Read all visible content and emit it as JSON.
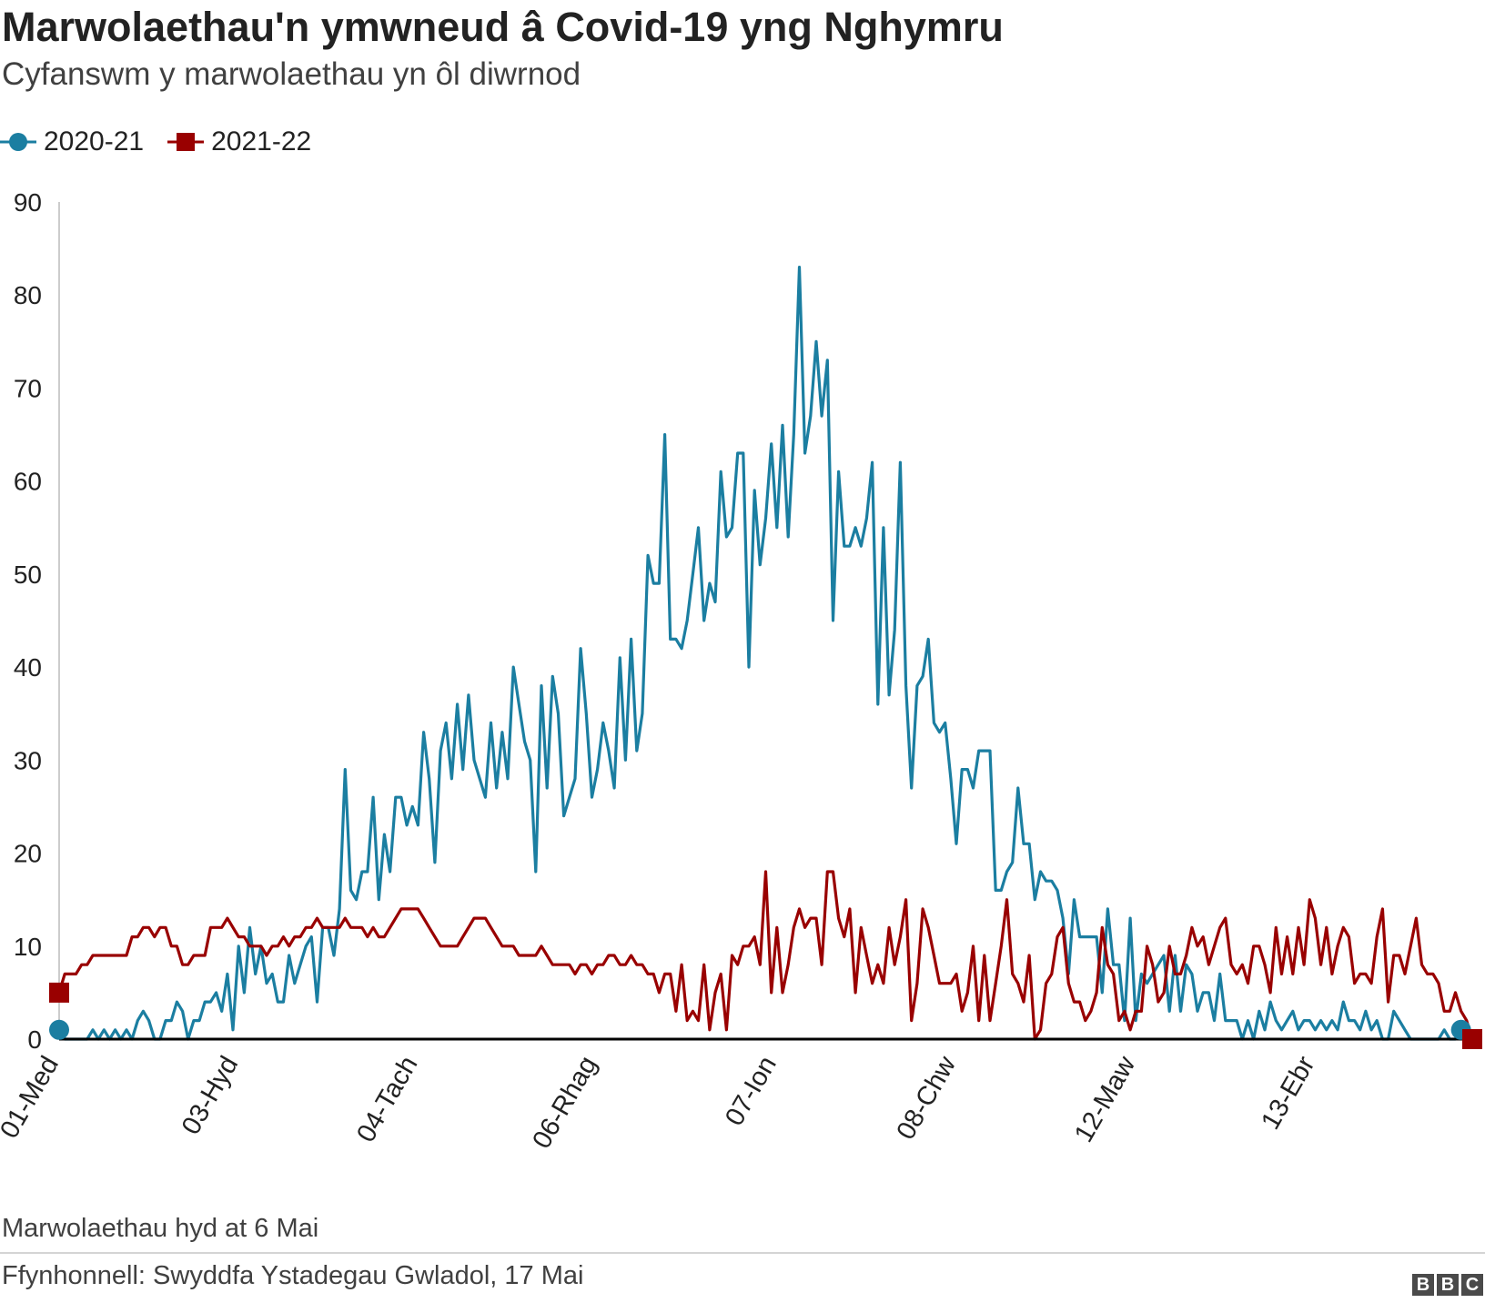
{
  "title": "Marwolaethau'n ymwneud â Covid-19 yng Nghymru",
  "subtitle": "Cyfanswm y marwolaethau yn ôl diwrnod",
  "note": "Marwolaethau hyd at 6 Mai",
  "source": "Ffynhonnell: Swyddfa Ystadegau Gwladol, 17 Mai",
  "logo": [
    "B",
    "B",
    "C"
  ],
  "colors": {
    "series_2020_21": "#1b7ea1",
    "series_2021_22": "#990000",
    "axis": "#000000",
    "gridline": "#cccccc"
  },
  "chart_data": {
    "type": "line",
    "title": "Marwolaethau'n ymwneud â Covid-19 yng Nghymru",
    "subtitle": "Cyfanswm y marwolaethau yn ôl diwrnod",
    "xlabel": "",
    "ylabel": "",
    "ylim": [
      0,
      90
    ],
    "yticks": [
      0,
      10,
      20,
      30,
      40,
      50,
      60,
      70,
      80,
      90
    ],
    "xlim": [
      "01-Med",
      "06-Mai"
    ],
    "xticks": [
      {
        "label": "01-Med",
        "day": 0
      },
      {
        "label": "03-Hyd",
        "day": 32
      },
      {
        "label": "04-Tach",
        "day": 64
      },
      {
        "label": "06-Rhag",
        "day": 96
      },
      {
        "label": "07-Ion",
        "day": 128
      },
      {
        "label": "08-Chw",
        "day": 160
      },
      {
        "label": "12-Maw",
        "day": 192
      },
      {
        "label": "13-Ebr",
        "day": 224
      }
    ],
    "grid": false,
    "legend": "top-left",
    "series": [
      {
        "name": "2020-21",
        "color": "#1b7ea1",
        "marker": "circle",
        "values": [
          1,
          0,
          0,
          0,
          0,
          0,
          1,
          0,
          1,
          0,
          1,
          0,
          1,
          0,
          2,
          3,
          2,
          0,
          0,
          2,
          2,
          4,
          3,
          0,
          2,
          2,
          4,
          4,
          5,
          3,
          7,
          1,
          10,
          5,
          12,
          7,
          10,
          6,
          7,
          4,
          4,
          9,
          6,
          8,
          10,
          11,
          4,
          12,
          12,
          9,
          14,
          29,
          16,
          15,
          18,
          18,
          26,
          15,
          22,
          18,
          26,
          26,
          23,
          25,
          23,
          33,
          28,
          19,
          31,
          34,
          28,
          36,
          29,
          37,
          30,
          28,
          26,
          34,
          27,
          33,
          28,
          40,
          36,
          32,
          30,
          18,
          38,
          27,
          39,
          35,
          24,
          26,
          28,
          42,
          35,
          26,
          29,
          34,
          31,
          27,
          41,
          30,
          43,
          31,
          35,
          52,
          49,
          49,
          65,
          43,
          43,
          42,
          45,
          50,
          55,
          45,
          49,
          47,
          61,
          54,
          55,
          63,
          63,
          40,
          59,
          51,
          56,
          64,
          55,
          66,
          54,
          65,
          83,
          63,
          67,
          75,
          67,
          73,
          45,
          61,
          53,
          53,
          55,
          53,
          56,
          62,
          36,
          55,
          37,
          44,
          62,
          38,
          27,
          38,
          39,
          43,
          34,
          33,
          34,
          28,
          21,
          29,
          29,
          27,
          31,
          31,
          31,
          16,
          16,
          18,
          19,
          27,
          21,
          21,
          15,
          18,
          17,
          17,
          16,
          13,
          7,
          15,
          11,
          11,
          11,
          11,
          5,
          14,
          8,
          8,
          2,
          13,
          2,
          7,
          6,
          7,
          8,
          9,
          3,
          9,
          3,
          8,
          7,
          3,
          5,
          5,
          2,
          7,
          2,
          2,
          2,
          0,
          2,
          0,
          3,
          1,
          4,
          2,
          1,
          2,
          3,
          1,
          2,
          2,
          1,
          2,
          1,
          2,
          1,
          4,
          2,
          2,
          1,
          3,
          1,
          2,
          0,
          0,
          3,
          2,
          1,
          0,
          0,
          0,
          0,
          0,
          0,
          1,
          0,
          0,
          1
        ]
      },
      {
        "name": "2021-22",
        "color": "#990000",
        "marker": "square",
        "values": [
          5,
          7,
          7,
          7,
          8,
          8,
          9,
          9,
          9,
          9,
          9,
          9,
          9,
          11,
          11,
          12,
          12,
          11,
          12,
          12,
          10,
          10,
          8,
          8,
          9,
          9,
          9,
          12,
          12,
          12,
          13,
          12,
          11,
          11,
          10,
          10,
          10,
          9,
          10,
          10,
          11,
          10,
          11,
          11,
          12,
          12,
          13,
          12,
          12,
          12,
          12,
          13,
          12,
          12,
          12,
          11,
          12,
          11,
          11,
          12,
          13,
          14,
          14,
          14,
          14,
          13,
          12,
          11,
          10,
          10,
          10,
          10,
          11,
          12,
          13,
          13,
          13,
          12,
          11,
          10,
          10,
          10,
          9,
          9,
          9,
          9,
          10,
          9,
          8,
          8,
          8,
          8,
          7,
          8,
          8,
          7,
          8,
          8,
          9,
          9,
          8,
          8,
          9,
          8,
          8,
          7,
          7,
          5,
          7,
          7,
          3,
          8,
          2,
          3,
          2,
          8,
          1,
          5,
          7,
          1,
          9,
          8,
          10,
          10,
          11,
          8,
          18,
          5,
          12,
          5,
          8,
          12,
          14,
          12,
          13,
          13,
          8,
          18,
          18,
          13,
          11,
          14,
          5,
          12,
          9,
          6,
          8,
          6,
          12,
          8,
          11,
          15,
          2,
          6,
          14,
          12,
          9,
          6,
          6,
          6,
          7,
          3,
          5,
          10,
          2,
          9,
          2,
          6,
          10,
          15,
          7,
          6,
          4,
          9,
          0,
          1,
          6,
          7,
          11,
          12,
          6,
          4,
          4,
          2,
          3,
          5,
          12,
          8,
          7,
          2,
          3,
          1,
          3,
          3,
          10,
          8,
          4,
          5,
          10,
          7,
          7,
          9,
          12,
          10,
          11,
          8,
          10,
          12,
          13,
          8,
          7,
          8,
          6,
          10,
          10,
          8,
          5,
          12,
          7,
          11,
          7,
          12,
          8,
          15,
          13,
          8,
          12,
          7,
          10,
          12,
          11,
          6,
          7,
          7,
          6,
          11,
          14,
          4,
          9,
          9,
          7,
          10,
          13,
          8,
          7,
          7,
          6,
          3,
          3,
          5,
          3,
          2,
          0
        ]
      }
    ]
  }
}
